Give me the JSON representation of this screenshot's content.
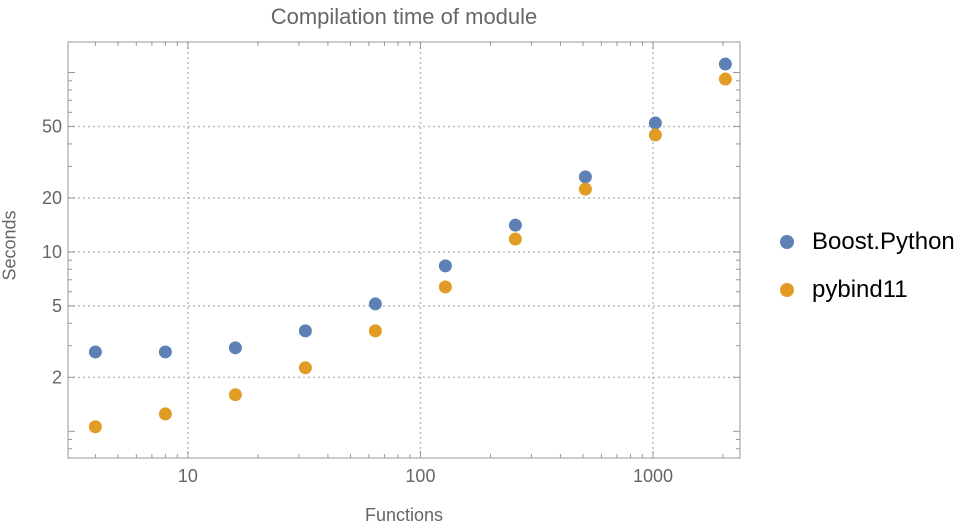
{
  "chart_data": {
    "type": "scatter",
    "title": "Compilation time of module",
    "xlabel": "Functions",
    "ylabel": "Seconds",
    "xscale": "log",
    "yscale": "log",
    "xlim": [
      3.05,
      2367
    ],
    "ylim": [
      0.71,
      148
    ],
    "grid": true,
    "legend_position": "right",
    "x_ticks": [
      10,
      100,
      1000
    ],
    "x_tick_labels": [
      "10",
      "100",
      "1000"
    ],
    "y_ticks": [
      2,
      5,
      10,
      20,
      50
    ],
    "y_tick_labels": [
      "2",
      "5",
      "10",
      "20",
      "50"
    ],
    "x": [
      4,
      8,
      16,
      32,
      64,
      128,
      256,
      512,
      1024,
      2048
    ],
    "series": [
      {
        "name": "Boost.Python",
        "color": "#5E81B5",
        "values": [
          2.77,
          2.77,
          2.92,
          3.63,
          5.13,
          8.36,
          14.1,
          26.2,
          52.3,
          111.5
        ]
      },
      {
        "name": "pybind11",
        "color": "#E19C24",
        "values": [
          1.06,
          1.25,
          1.6,
          2.26,
          3.63,
          6.38,
          11.8,
          22.4,
          44.9,
          92.0
        ]
      }
    ]
  }
}
